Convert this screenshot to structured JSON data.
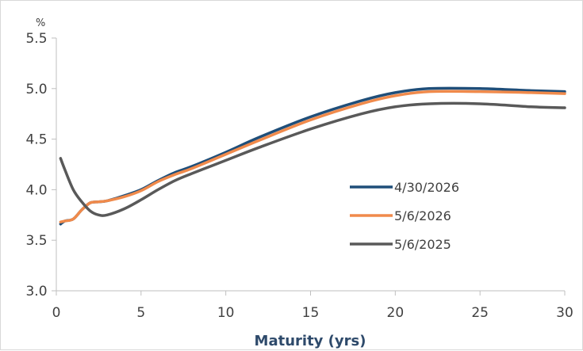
{
  "chart_data": {
    "type": "line",
    "unit_label": "%",
    "xlabel": "Maturity (yrs)",
    "xlim": [
      0,
      30
    ],
    "ylim": [
      3.0,
      5.5
    ],
    "x_ticks": [
      0,
      5,
      10,
      15,
      20,
      25,
      30
    ],
    "y_ticks": [
      3.0,
      3.5,
      4.0,
      4.5,
      5.0,
      5.5
    ],
    "x_tick_labels": [
      "0",
      "5",
      "10",
      "15",
      "20",
      "25",
      "30"
    ],
    "y_tick_labels": [
      "3.0",
      "3.5",
      "4.0",
      "4.5",
      "5.0",
      "5.5"
    ],
    "grid": false,
    "legend_position": "center-right",
    "series": [
      {
        "name": "4/30/2026",
        "color": "#1f4e79",
        "x": [
          0.25,
          0.5,
          1,
          1.5,
          2,
          2.5,
          3,
          4,
          5,
          6,
          7,
          8,
          10,
          12,
          15,
          18,
          20,
          22,
          25,
          28,
          30
        ],
        "y": [
          3.66,
          3.69,
          3.71,
          3.8,
          3.87,
          3.88,
          3.89,
          3.94,
          4.0,
          4.09,
          4.17,
          4.23,
          4.37,
          4.52,
          4.72,
          4.88,
          4.96,
          5.0,
          5.0,
          4.98,
          4.97
        ]
      },
      {
        "name": "5/6/2026",
        "color": "#f08a4b",
        "x": [
          0.25,
          0.5,
          1,
          1.5,
          2,
          2.5,
          3,
          4,
          5,
          6,
          7,
          8,
          10,
          12,
          15,
          18,
          20,
          22,
          25,
          28,
          30
        ],
        "y": [
          3.68,
          3.69,
          3.71,
          3.8,
          3.87,
          3.88,
          3.89,
          3.93,
          3.99,
          4.08,
          4.15,
          4.21,
          4.35,
          4.49,
          4.69,
          4.85,
          4.93,
          4.97,
          4.97,
          4.96,
          4.95
        ]
      },
      {
        "name": "5/6/2025",
        "color": "#595959",
        "x": [
          0.25,
          0.5,
          1,
          1.5,
          2,
          2.5,
          3,
          4,
          5,
          6,
          7,
          8,
          10,
          12,
          15,
          18,
          20,
          22,
          25,
          28,
          30
        ],
        "y": [
          4.31,
          4.2,
          4.0,
          3.88,
          3.79,
          3.75,
          3.75,
          3.81,
          3.9,
          4.0,
          4.09,
          4.16,
          4.29,
          4.42,
          4.6,
          4.75,
          4.82,
          4.85,
          4.85,
          4.82,
          4.81
        ]
      }
    ]
  }
}
